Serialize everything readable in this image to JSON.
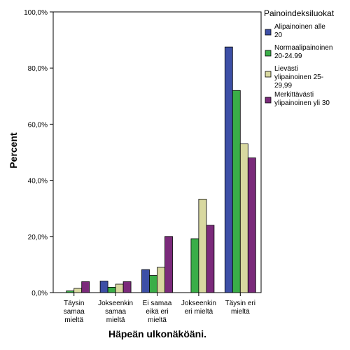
{
  "chart_data": {
    "type": "bar",
    "xlabel": "Häpeän ulkonäköäni.",
    "ylabel": "Percent",
    "ylim": [
      0,
      100
    ],
    "yticks": [
      "0,0%",
      "20,0%",
      "40,0%",
      "60,0%",
      "80,0%",
      "100,0%"
    ],
    "grid": false,
    "legend_position": "right",
    "legend_title": "Painoindeksiluokat",
    "categories": [
      [
        "Täysin",
        "samaa",
        "mieltä"
      ],
      [
        "Jokseenkin",
        "samaa",
        "mieltä"
      ],
      [
        "Ei samaa",
        "eikä eri",
        "mieltä"
      ],
      [
        "Jokseenkin",
        "eri mieltä"
      ],
      [
        "Täysin eri",
        "mieltä"
      ]
    ],
    "series": [
      {
        "name": [
          "Alipainoinen alle",
          "20"
        ],
        "color": "#3d4fa6",
        "values": [
          0.0,
          4.1,
          8.2,
          0.0,
          87.5
        ]
      },
      {
        "name": [
          "Normaalipainoinen",
          "20-24.99"
        ],
        "color": "#3aae48",
        "values": [
          0.6,
          1.9,
          6.1,
          19.2,
          72.0
        ]
      },
      {
        "name": [
          "Lievästi",
          "ylipainoinen 25-",
          "29,99"
        ],
        "color": "#d8d8a0",
        "values": [
          1.5,
          3.0,
          9.0,
          33.3,
          53.0
        ]
      },
      {
        "name": [
          "Merkittävästi",
          "ylipainoinen yli 30"
        ],
        "color": "#7b2a7b",
        "values": [
          3.9,
          3.9,
          20.0,
          24.0,
          48.0
        ]
      }
    ]
  }
}
